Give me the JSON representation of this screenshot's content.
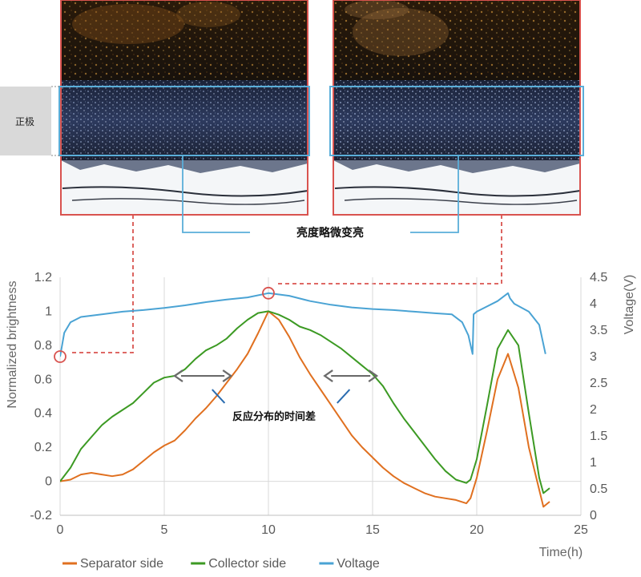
{
  "top_panel": {
    "side_label": "正极",
    "callout_brightness": "亮度略微变亮",
    "colors": {
      "frame": "#d9534f",
      "highlight": "#5aaed9",
      "side_label_bg": "#d9d9d9"
    }
  },
  "chart_data": {
    "type": "line",
    "title": "",
    "xlabel": "Time(h)",
    "ylabel_left": "Normalized brightness",
    "ylabel_right": "Voltage(V)",
    "xlim": [
      0,
      25
    ],
    "ylim_left": [
      -0.2,
      1.2
    ],
    "ylim_right": [
      0,
      4.5
    ],
    "x_ticks": [
      "0",
      "5",
      "10",
      "15",
      "20",
      "25"
    ],
    "y_ticks_left": [
      "-0.2",
      "0",
      "0.2",
      "0.4",
      "0.6",
      "0.8",
      "1",
      "1.2"
    ],
    "y_ticks_right": [
      "0",
      "0.5",
      "1",
      "1.5",
      "2",
      "2.5",
      "3",
      "3.5",
      "4",
      "4.5"
    ],
    "grid": "vertical",
    "legend_position": "bottom",
    "annotation_time_diff": "反应分布的时间差",
    "series": [
      {
        "name": "Separator side",
        "axis": "left",
        "color": "#e07020",
        "x": [
          0,
          0.5,
          1,
          1.5,
          2,
          2.5,
          3,
          3.5,
          4,
          4.5,
          5,
          5.5,
          6,
          6.5,
          7,
          7.5,
          8,
          8.5,
          9,
          9.5,
          10,
          10.5,
          11,
          11.5,
          12,
          12.5,
          13,
          13.5,
          14,
          14.5,
          15,
          15.5,
          16,
          16.5,
          17,
          17.5,
          18,
          18.5,
          19,
          19.5,
          19.7,
          20,
          20.5,
          21,
          21.5,
          22,
          22.5,
          23,
          23.2,
          23.5
        ],
        "y": [
          0.0,
          0.01,
          0.04,
          0.05,
          0.04,
          0.03,
          0.04,
          0.07,
          0.12,
          0.17,
          0.21,
          0.24,
          0.3,
          0.37,
          0.43,
          0.5,
          0.58,
          0.66,
          0.75,
          0.87,
          1.0,
          0.95,
          0.85,
          0.73,
          0.63,
          0.54,
          0.45,
          0.36,
          0.27,
          0.2,
          0.14,
          0.08,
          0.03,
          -0.01,
          -0.04,
          -0.07,
          -0.09,
          -0.1,
          -0.11,
          -0.13,
          -0.1,
          0.02,
          0.3,
          0.6,
          0.75,
          0.55,
          0.2,
          -0.05,
          -0.15,
          -0.12
        ]
      },
      {
        "name": "Collector side",
        "axis": "left",
        "color": "#3c9a23",
        "x": [
          0,
          0.5,
          1,
          1.5,
          2,
          2.5,
          3,
          3.5,
          4,
          4.5,
          5,
          5.5,
          6,
          6.5,
          7,
          7.5,
          8,
          8.5,
          9,
          9.5,
          10,
          10.5,
          11,
          11.5,
          12,
          12.5,
          13,
          13.5,
          14,
          14.5,
          15,
          15.5,
          16,
          16.5,
          17,
          17.5,
          18,
          18.5,
          19,
          19.5,
          19.7,
          20,
          20.5,
          21,
          21.5,
          22,
          22.5,
          23,
          23.2,
          23.5
        ],
        "y": [
          0.0,
          0.08,
          0.19,
          0.26,
          0.33,
          0.38,
          0.42,
          0.46,
          0.52,
          0.58,
          0.61,
          0.62,
          0.66,
          0.72,
          0.77,
          0.8,
          0.84,
          0.9,
          0.95,
          0.99,
          1.0,
          0.98,
          0.95,
          0.91,
          0.89,
          0.86,
          0.82,
          0.78,
          0.73,
          0.68,
          0.63,
          0.56,
          0.46,
          0.37,
          0.29,
          0.21,
          0.13,
          0.06,
          0.01,
          -0.01,
          0.01,
          0.13,
          0.45,
          0.78,
          0.89,
          0.8,
          0.4,
          0.02,
          -0.07,
          -0.04
        ]
      },
      {
        "name": "Voltage",
        "axis": "right",
        "color": "#4aa3d4",
        "x": [
          0,
          0.2,
          0.5,
          1,
          2,
          3,
          4,
          5,
          6,
          7,
          8,
          9,
          10,
          11,
          12,
          13,
          14,
          15,
          16,
          17,
          18,
          18.8,
          19.3,
          19.6,
          19.8,
          19.85,
          20,
          21,
          21.5,
          21.6,
          21.8,
          22.5,
          23,
          23.3
        ],
        "y": [
          3.0,
          3.45,
          3.65,
          3.75,
          3.8,
          3.85,
          3.88,
          3.92,
          3.97,
          4.03,
          4.08,
          4.12,
          4.2,
          4.15,
          4.05,
          3.98,
          3.93,
          3.9,
          3.88,
          3.85,
          3.82,
          3.8,
          3.65,
          3.4,
          3.05,
          3.8,
          3.85,
          4.05,
          4.2,
          4.1,
          4.0,
          3.85,
          3.6,
          3.05
        ]
      }
    ],
    "markers": [
      {
        "series": "Voltage",
        "x": 0,
        "y": 3.0
      },
      {
        "series": "Voltage",
        "x": 10,
        "y": 4.2
      }
    ]
  }
}
